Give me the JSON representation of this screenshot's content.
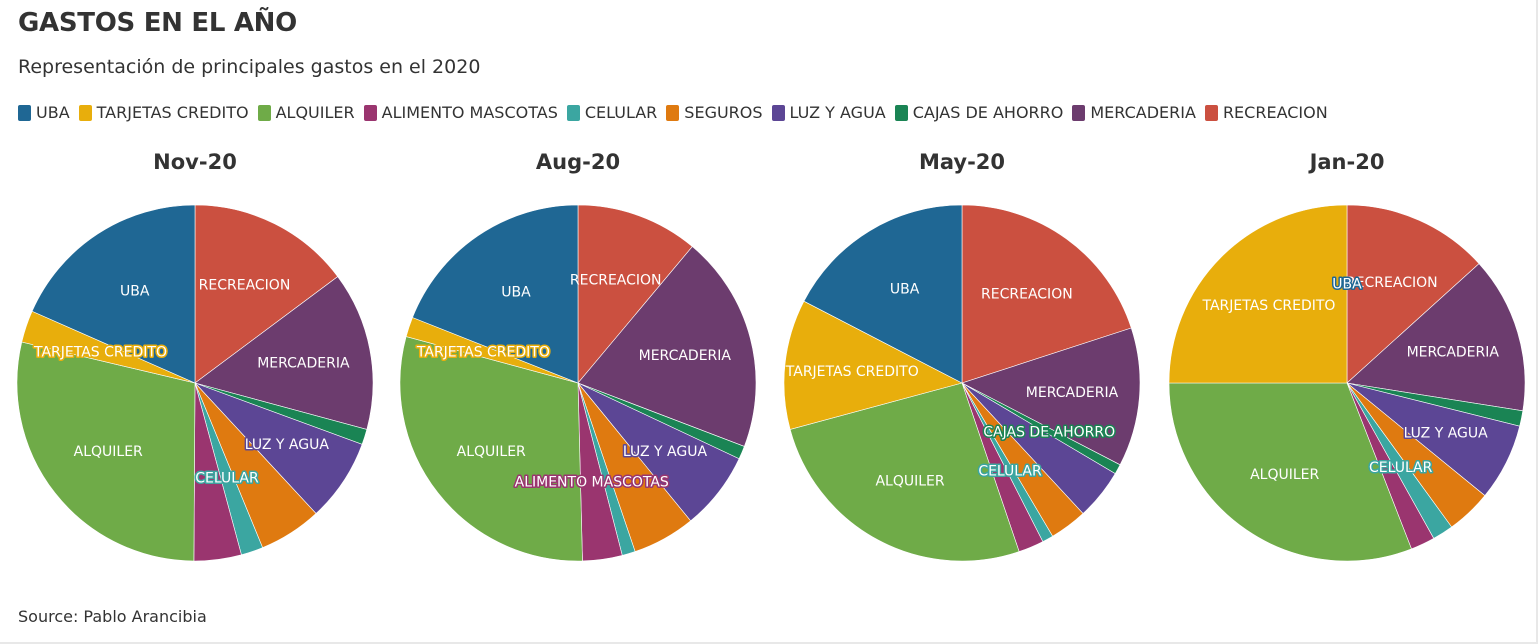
{
  "title": "GASTOS EN EL AÑO",
  "subtitle": "Representación de principales gastos en el 2020",
  "source": "Source: Pablo Arancibia",
  "legend": [
    {
      "label": "UBA",
      "color": "#1f6794"
    },
    {
      "label": "TARJETAS CREDITO",
      "color": "#e8ae0c"
    },
    {
      "label": "ALQUILER",
      "color": "#6fab48"
    },
    {
      "label": "ALIMENTO MASCOTAS",
      "color": "#9a356f"
    },
    {
      "label": "CELULAR",
      "color": "#3ba6a1"
    },
    {
      "label": "SEGUROS",
      "color": "#df7a10"
    },
    {
      "label": "LUZ Y AGUA",
      "color": "#5c4695"
    },
    {
      "label": "CAJAS DE AHORRO",
      "color": "#1a8454"
    },
    {
      "label": "MERCADERIA",
      "color": "#6c3c6e"
    },
    {
      "label": "RECREACION",
      "color": "#cb5040"
    }
  ],
  "chart_data": [
    {
      "type": "pie",
      "title": "Nov-20",
      "categories": [
        "RECREACION",
        "MERCADERIA",
        "CAJAS DE AHORRO",
        "LUZ Y AGUA",
        "SEGUROS",
        "CELULAR",
        "ALIMENTO MASCOTAS",
        "ALQUILER",
        "TARJETAS CREDITO",
        "UBA"
      ],
      "values": [
        14.8,
        14.4,
        1.4,
        7.5,
        5.7,
        2.0,
        4.3,
        28.6,
        2.9,
        18.4
      ],
      "labels": [
        "RECREACION",
        "MERCADERIA",
        "",
        "LUZ Y AGUA",
        "",
        "CELULAR",
        "",
        "ALQUILER",
        "TARJETAS CREDITO",
        "UBA"
      ]
    },
    {
      "type": "pie",
      "title": "Aug-20",
      "categories": [
        "RECREACION",
        "MERCADERIA",
        "CAJAS DE AHORRO",
        "LUZ Y AGUA",
        "SEGUROS",
        "CELULAR",
        "ALIMENTO MASCOTAS",
        "ALQUILER",
        "TARJETAS CREDITO",
        "UBA"
      ],
      "values": [
        11.1,
        19.7,
        1.2,
        7.1,
        5.7,
        1.2,
        3.6,
        29.6,
        1.8,
        19.0
      ],
      "labels": [
        "RECREACION",
        "MERCADERIA",
        "",
        "LUZ Y AGUA",
        "",
        "",
        "ALIMENTO MASCOTAS",
        "ALQUILER",
        "TARJETAS CREDITO",
        "UBA"
      ]
    },
    {
      "type": "pie",
      "title": "May-20",
      "categories": [
        "RECREACION",
        "MERCADERIA",
        "CAJAS DE AHORRO",
        "LUZ Y AGUA",
        "SEGUROS",
        "CELULAR",
        "ALIMENTO MASCOTAS",
        "ALQUILER",
        "TARJETAS CREDITO",
        "UBA"
      ],
      "values": [
        20.0,
        12.6,
        0.9,
        4.6,
        3.4,
        1.0,
        2.3,
        26.0,
        11.8,
        17.4
      ],
      "labels": [
        "RECREACION",
        "MERCADERIA",
        "CAJAS DE AHORRO",
        "",
        "",
        "CELULAR",
        "",
        "ALQUILER",
        "TARJETAS CREDITO",
        "UBA"
      ]
    },
    {
      "type": "pie",
      "title": "Jan-20",
      "categories": [
        "RECREACION",
        "MERCADERIA",
        "CAJAS DE AHORRO",
        "LUZ Y AGUA",
        "SEGUROS",
        "CELULAR",
        "ALIMENTO MASCOTAS",
        "ALQUILER",
        "TARJETAS CREDITO",
        "UBA"
      ],
      "values": [
        13.3,
        14.2,
        1.4,
        7.0,
        4.1,
        1.9,
        2.2,
        30.9,
        25.0,
        0.0
      ],
      "labels": [
        "RECREACION",
        "MERCADERIA",
        "",
        "LUZ Y AGUA",
        "",
        "CELULAR",
        "",
        "ALQUILER",
        "TARJETAS CREDITO",
        "UBA"
      ]
    }
  ]
}
